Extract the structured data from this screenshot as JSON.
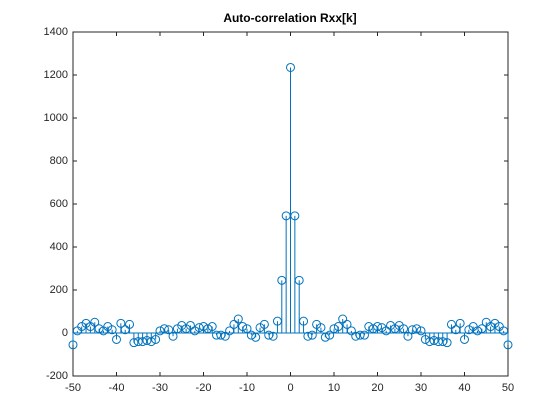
{
  "chart_data": {
    "type": "stem",
    "title": "Auto-correlation Rxx[k]",
    "x": [
      -50,
      -49,
      -48,
      -47,
      -46,
      -45,
      -44,
      -43,
      -42,
      -41,
      -40,
      -39,
      -38,
      -37,
      -36,
      -35,
      -34,
      -33,
      -32,
      -31,
      -30,
      -29,
      -28,
      -27,
      -26,
      -25,
      -24,
      -23,
      -22,
      -21,
      -20,
      -19,
      -18,
      -17,
      -16,
      -15,
      -14,
      -13,
      -12,
      -11,
      -10,
      -9,
      -8,
      -7,
      -6,
      -5,
      -4,
      -3,
      -2,
      -1,
      0,
      1,
      2,
      3,
      4,
      5,
      6,
      7,
      8,
      9,
      10,
      11,
      12,
      13,
      14,
      15,
      16,
      17,
      18,
      19,
      20,
      21,
      22,
      23,
      24,
      25,
      26,
      27,
      28,
      29,
      30,
      31,
      32,
      33,
      34,
      35,
      36,
      37,
      38,
      39,
      40,
      41,
      42,
      43,
      44,
      45,
      46,
      47,
      48,
      49,
      50
    ],
    "values": [
      -55,
      10,
      30,
      45,
      30,
      50,
      20,
      10,
      30,
      15,
      -30,
      45,
      15,
      40,
      -45,
      -40,
      -40,
      -35,
      -40,
      -30,
      10,
      20,
      15,
      -15,
      20,
      35,
      20,
      35,
      10,
      25,
      30,
      20,
      30,
      -10,
      -10,
      -15,
      10,
      40,
      65,
      30,
      20,
      -10,
      -20,
      25,
      40,
      -10,
      -15,
      55,
      245,
      545,
      1235,
      545,
      245,
      55,
      -15,
      -10,
      40,
      25,
      -20,
      -10,
      20,
      30,
      65,
      40,
      10,
      -15,
      -10,
      -10,
      30,
      20,
      30,
      25,
      10,
      35,
      20,
      35,
      20,
      -15,
      15,
      20,
      10,
      -30,
      -40,
      -35,
      -40,
      -40,
      -45,
      40,
      15,
      45,
      -30,
      15,
      30,
      10,
      20,
      50,
      30,
      45,
      30,
      10,
      -55
    ],
    "color": "#0072bd",
    "xlim": [
      -50,
      50
    ],
    "xticks": [
      -50,
      -40,
      -30,
      -20,
      -10,
      0,
      10,
      20,
      30,
      40,
      50
    ],
    "ylim": [
      -200,
      1400
    ],
    "yticks": [
      -200,
      0,
      200,
      400,
      600,
      800,
      1000,
      1200,
      1400
    ],
    "grid": false
  }
}
